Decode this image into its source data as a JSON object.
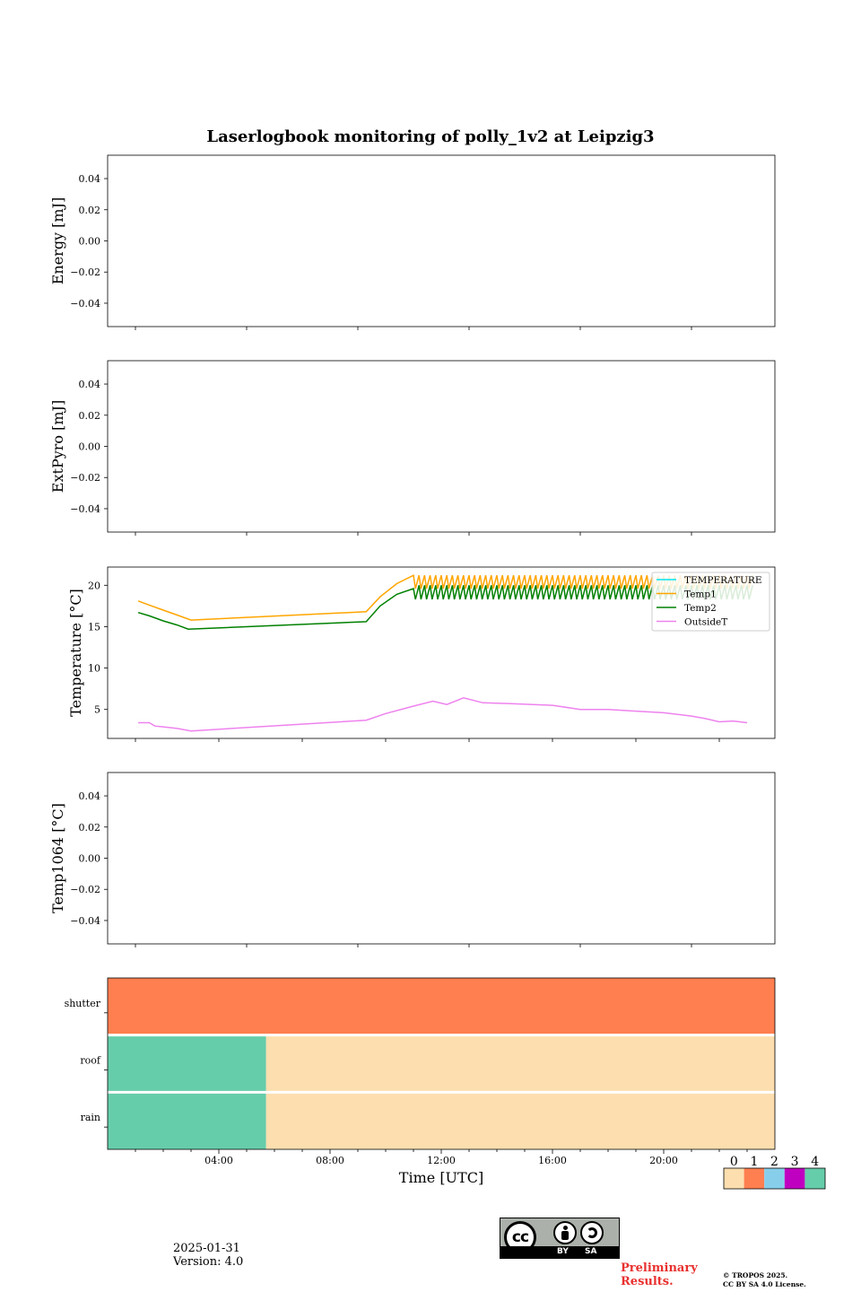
{
  "title": "Laserlogbook monitoring of polly_1v2 at Leipzig3",
  "colors": {
    "temperature": "#00e5ee",
    "temp1": "#ffa500",
    "temp2": "#008000",
    "outsideT": "#ee82ee",
    "status": [
      "#fddeaf",
      "#ff7f50",
      "#87ceeb",
      "#c000c0",
      "#66cdaa"
    ]
  },
  "chart_data": [
    {
      "type": "line",
      "ylabel": "Energy [mJ]",
      "yticks": [
        "0.04",
        "0.02",
        "0.00",
        "−0.02",
        "−0.04"
      ],
      "ylim": [
        -0.055,
        0.055
      ],
      "series": []
    },
    {
      "type": "line",
      "ylabel": "ExtPyro [mJ]",
      "yticks": [
        "0.04",
        "0.02",
        "0.00",
        "−0.02",
        "−0.04"
      ],
      "ylim": [
        -0.055,
        0.055
      ],
      "series": []
    },
    {
      "type": "line",
      "ylabel": "Temperature [°C]",
      "yticks": [
        "20",
        "15",
        "10",
        "5"
      ],
      "ylim": [
        1.5,
        22.2
      ],
      "xlim_hours": [
        0,
        24
      ],
      "legend": [
        "TEMPERATURE",
        "Temp1",
        "Temp2",
        "OutsideT"
      ],
      "legend_position": "upper right",
      "series": [
        {
          "name": "TEMPERATURE",
          "x": [],
          "y": []
        },
        {
          "name": "Temp1",
          "x": [
            1.1,
            1.5,
            2.0,
            2.5,
            3.0,
            9.3,
            9.8,
            10.4,
            11.0
          ],
          "y": [
            18.1,
            17.6,
            17.0,
            16.4,
            15.8,
            16.8,
            18.6,
            20.2,
            21.2
          ],
          "sawtooth": {
            "from": 11.0,
            "to": 23.0,
            "period": 0.2,
            "low": 19.6,
            "high": 21.2
          }
        },
        {
          "name": "Temp2",
          "x": [
            1.1,
            1.5,
            2.0,
            2.5,
            2.9,
            9.3,
            9.8,
            10.4,
            11.0
          ],
          "y": [
            16.7,
            16.3,
            15.7,
            15.2,
            14.7,
            15.6,
            17.5,
            18.9,
            19.6
          ],
          "sawtooth": {
            "from": 11.0,
            "to": 23.0,
            "period": 0.2,
            "low": 18.3,
            "high": 20.0
          }
        },
        {
          "name": "OutsideT",
          "x": [
            1.1,
            1.5,
            1.7,
            2.0,
            2.5,
            3.0,
            9.3,
            10.0,
            11.0,
            11.7,
            12.2,
            12.8,
            13.5,
            14.5,
            16.0,
            17.0,
            18.0,
            19.0,
            20.0,
            21.0,
            21.5,
            22.0,
            22.5,
            23.0
          ],
          "y": [
            3.4,
            3.4,
            3.0,
            2.9,
            2.7,
            2.4,
            3.7,
            4.5,
            5.4,
            6.0,
            5.6,
            6.4,
            5.8,
            5.7,
            5.5,
            5.0,
            5.0,
            4.8,
            4.6,
            4.2,
            3.9,
            3.5,
            3.6,
            3.4
          ]
        }
      ]
    },
    {
      "type": "line",
      "ylabel": "Temp1064 [°C]",
      "yticks": [
        "0.04",
        "0.02",
        "0.00",
        "−0.02",
        "−0.04"
      ],
      "ylim": [
        -0.055,
        0.055
      ],
      "series": []
    },
    {
      "type": "heatmap",
      "rows": [
        "shutter",
        "roof",
        "rain"
      ],
      "xlim_hours": [
        0,
        24
      ],
      "xticks": [
        "04:00",
        "08:00",
        "12:00",
        "16:00",
        "20:00"
      ],
      "xlabel": "Time [UTC]",
      "segments": [
        [
          {
            "from": 0,
            "to": 24,
            "value": 1
          }
        ],
        [
          {
            "from": 0,
            "to": 5.7,
            "value": 4
          },
          {
            "from": 5.7,
            "to": 24,
            "value": 0
          }
        ],
        [
          {
            "from": 0,
            "to": 5.7,
            "value": 4
          },
          {
            "from": 5.7,
            "to": 24,
            "value": 0
          }
        ]
      ],
      "colorbar_ticks": [
        "0",
        "1",
        "2",
        "3",
        "4"
      ]
    }
  ],
  "footer": {
    "date": "2025-01-31",
    "version": "Version: 4.0",
    "cc_by": "BY",
    "cc_sa": "SA",
    "preliminary": "Preliminary Results.",
    "copyright_line1": "© TROPOS 2025.",
    "copyright_line2": "CC BY SA 4.0 License."
  }
}
